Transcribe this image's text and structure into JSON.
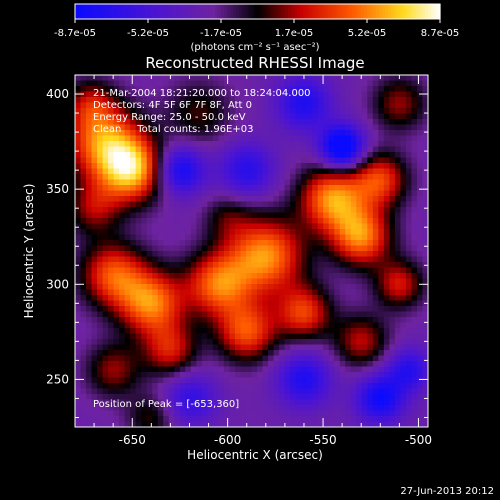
{
  "chart_data": {
    "type": "heatmap",
    "title": "Reconstructed RHESSI Image",
    "xlabel": "Heliocentric X (arcsec)",
    "ylabel": "Heliocentric Y (arcsec)",
    "xlim": [
      -680,
      -495
    ],
    "ylim": [
      225,
      410
    ],
    "x_ticks": [
      -650,
      -600,
      -550,
      -500
    ],
    "y_ticks": [
      250,
      300,
      350,
      400
    ],
    "colorbar": {
      "unit": "(photons cm⁻² s⁻¹ asec⁻²)",
      "ticks": [
        "-8.7e-05",
        "-5.2e-05",
        "-1.7e-05",
        "1.7e-05",
        "5.2e-05",
        "8.7e-05"
      ],
      "range": [
        -8.7e-05,
        8.7e-05
      ]
    },
    "annotations": [
      "21-Mar-2004 18:21:20.000 to 18:24:04.000",
      "Detectors: 4F 5F 6F 7F 8F, Att 0",
      "Energy Range: 25.0 - 50.0 keV",
      "Clean     Total counts: 1.96E+03"
    ],
    "peak_label": "Position of Peak = [-653,360]",
    "blobs": [
      {
        "x": -665,
        "y": 375,
        "s": 14,
        "a": 7.5e-05
      },
      {
        "x": -650,
        "y": 360,
        "s": 12,
        "a": 8.5e-05
      },
      {
        "x": -670,
        "y": 340,
        "s": 10,
        "a": 4e-05
      },
      {
        "x": -625,
        "y": 360,
        "s": 9,
        "a": -6e-05
      },
      {
        "x": -615,
        "y": 390,
        "s": 12,
        "a": 3e-05
      },
      {
        "x": -660,
        "y": 305,
        "s": 12,
        "a": 6.5e-05
      },
      {
        "x": -640,
        "y": 290,
        "s": 12,
        "a": 7.5e-05
      },
      {
        "x": -605,
        "y": 300,
        "s": 12,
        "a": 7e-05
      },
      {
        "x": -580,
        "y": 315,
        "s": 14,
        "a": 8e-05
      },
      {
        "x": -545,
        "y": 345,
        "s": 12,
        "a": 8e-05
      },
      {
        "x": -530,
        "y": 325,
        "s": 11,
        "a": 7.5e-05
      },
      {
        "x": -520,
        "y": 355,
        "s": 10,
        "a": 6e-05
      },
      {
        "x": -560,
        "y": 285,
        "s": 10,
        "a": 6e-05
      },
      {
        "x": -590,
        "y": 275,
        "s": 11,
        "a": 6.5e-05
      },
      {
        "x": -630,
        "y": 265,
        "s": 10,
        "a": 5e-05
      },
      {
        "x": -660,
        "y": 255,
        "s": 10,
        "a": 4e-05
      },
      {
        "x": -530,
        "y": 270,
        "s": 10,
        "a": 4.5e-05
      },
      {
        "x": -510,
        "y": 300,
        "s": 9,
        "a": 5e-05
      },
      {
        "x": -510,
        "y": 395,
        "s": 10,
        "a": 4e-05
      },
      {
        "x": -540,
        "y": 372,
        "s": 8,
        "a": -8.5e-05
      },
      {
        "x": -560,
        "y": 395,
        "s": 10,
        "a": -5e-05
      },
      {
        "x": -590,
        "y": 360,
        "s": 10,
        "a": -4.5e-05
      },
      {
        "x": -600,
        "y": 335,
        "s": 9,
        "a": 2.5e-05
      },
      {
        "x": -560,
        "y": 250,
        "s": 10,
        "a": -5e-05
      },
      {
        "x": -520,
        "y": 240,
        "s": 9,
        "a": -6e-05
      },
      {
        "x": -620,
        "y": 240,
        "s": 10,
        "a": -4e-05
      },
      {
        "x": -672,
        "y": 395,
        "s": 9,
        "a": 3.5e-05
      },
      {
        "x": -640,
        "y": 230,
        "s": 9,
        "a": 3e-05
      },
      {
        "x": -505,
        "y": 255,
        "s": 8,
        "a": -4.5e-05
      }
    ],
    "baseline": -2.5e-05
  },
  "footer": {
    "timestamp": "27-Jun-2013 20:12"
  }
}
